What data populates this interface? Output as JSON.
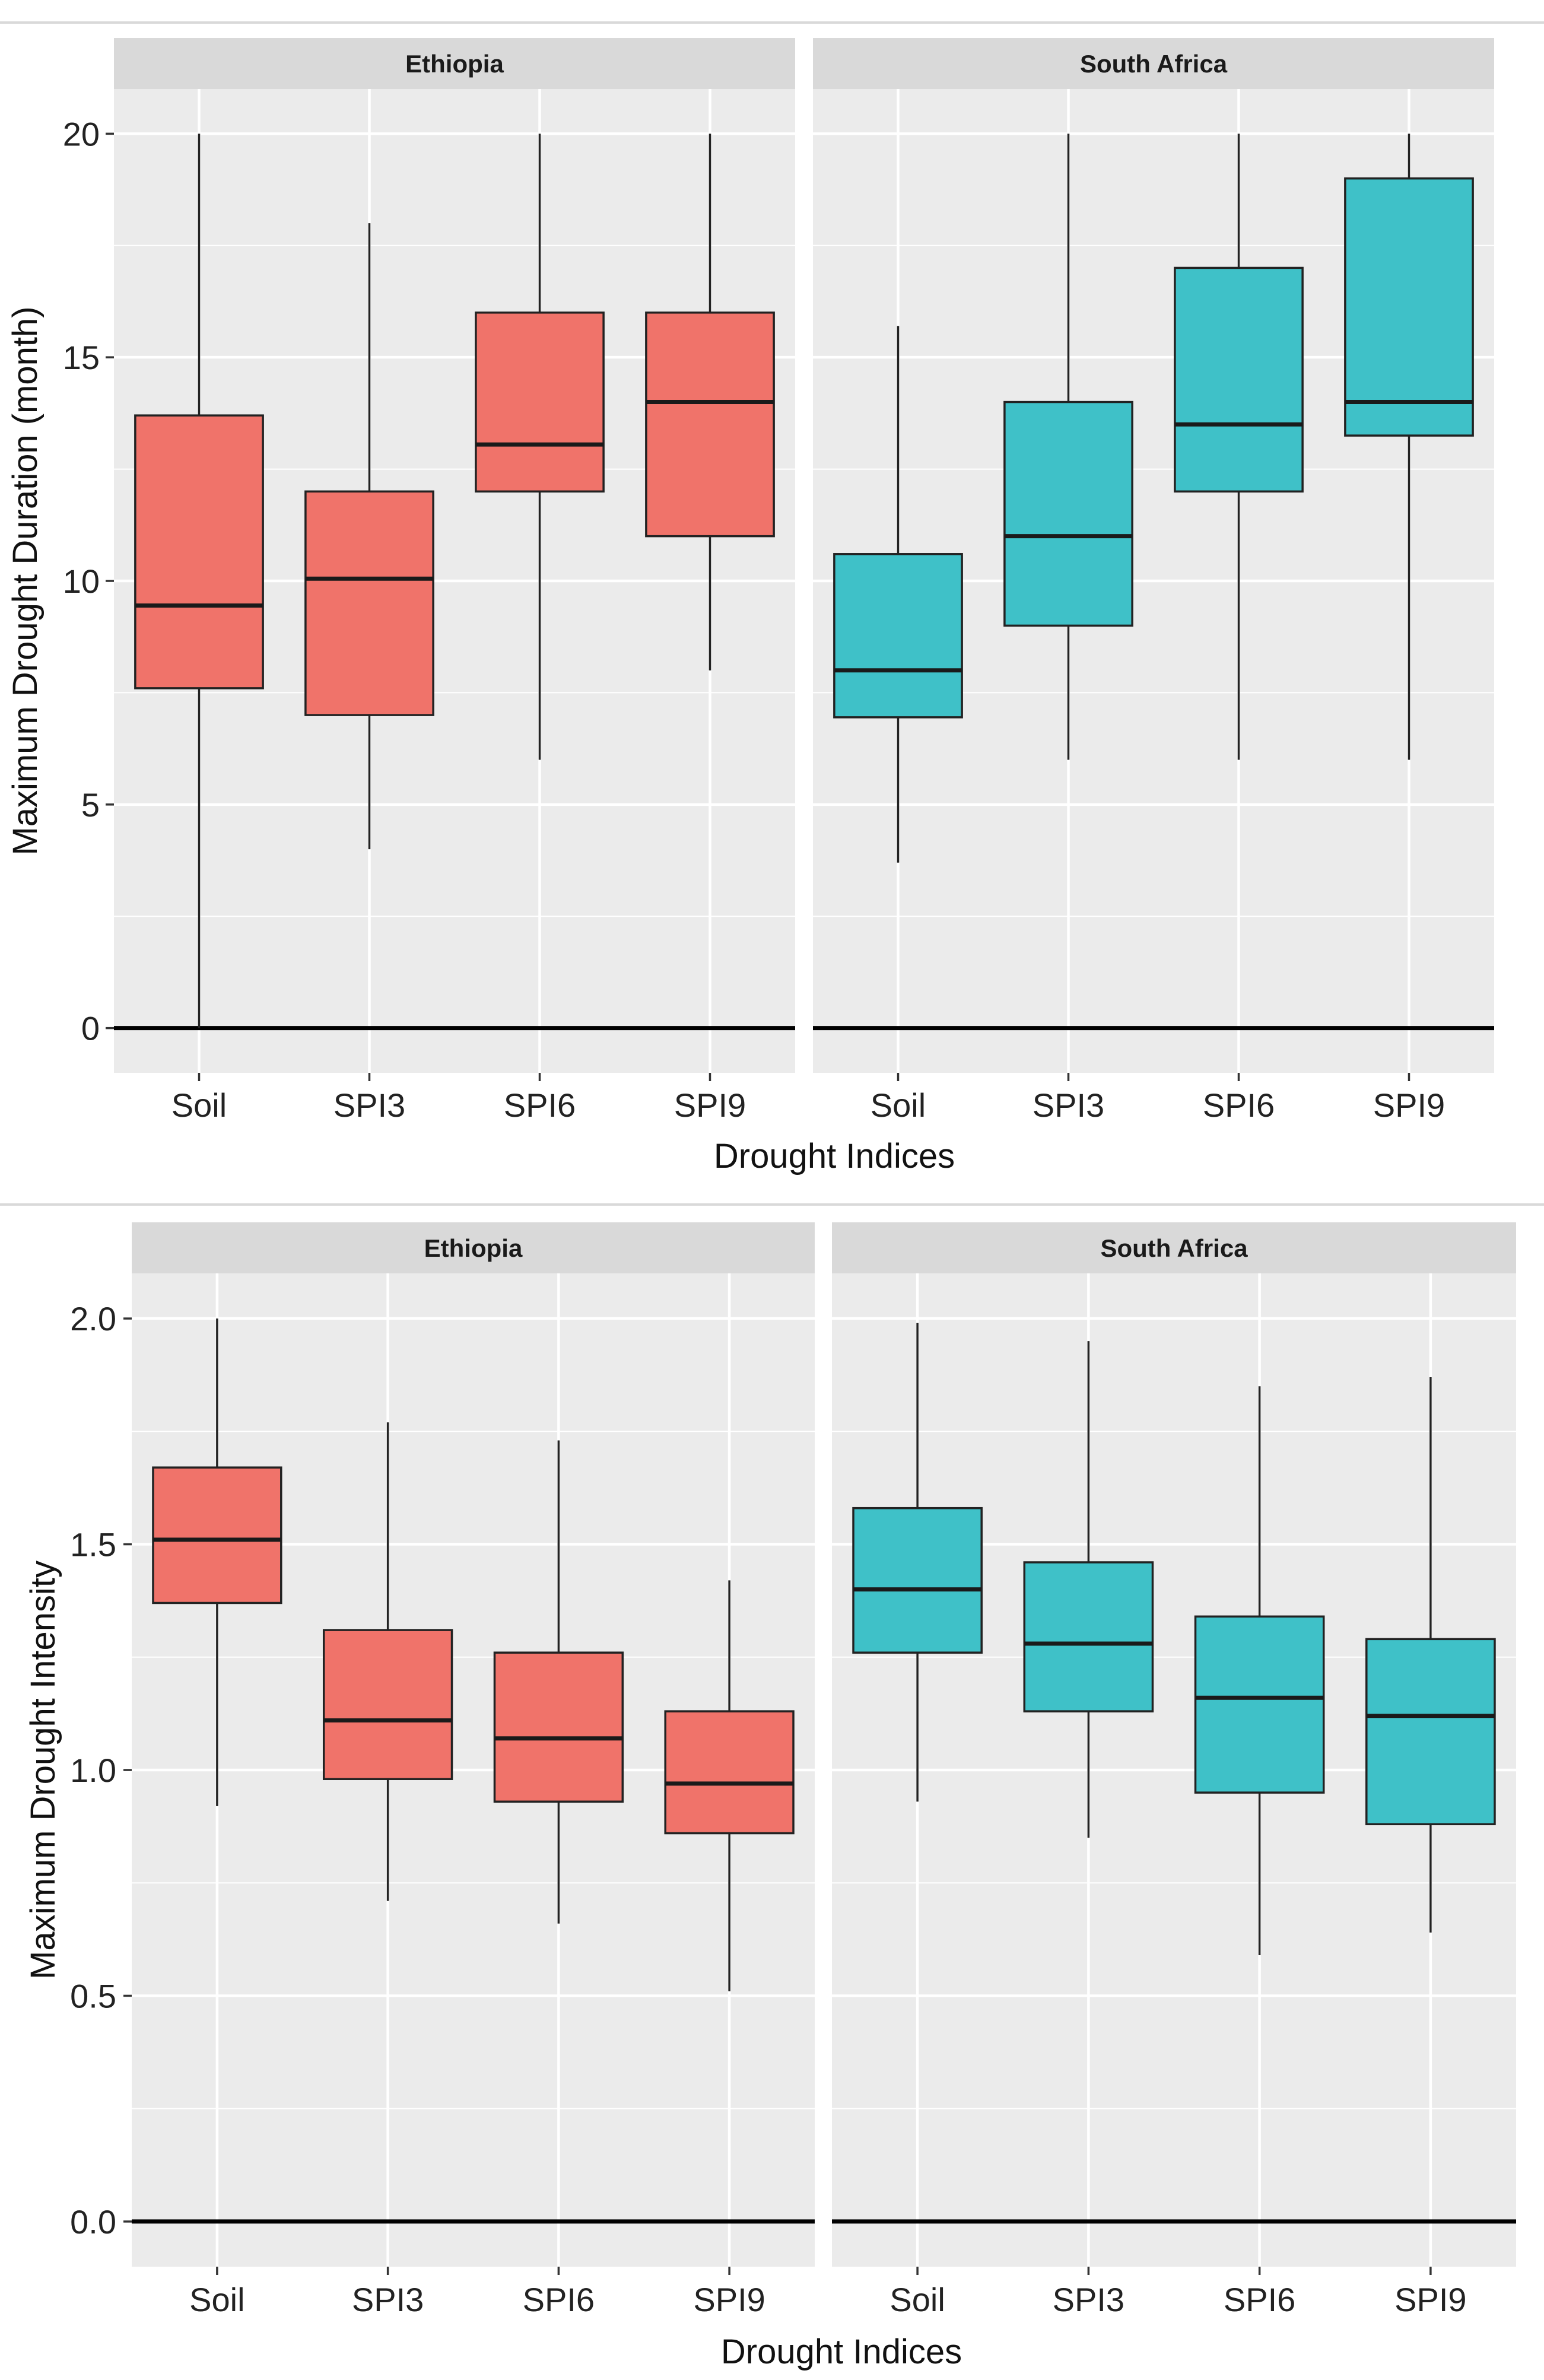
{
  "figure": {
    "colors": {
      "Ethiopia": "#F0736A",
      "South Africa": "#3FC1C8",
      "panel_background": "#EBEBEB",
      "strip_background": "#D9D9D9",
      "grid_line": "#FFFFFF",
      "outline": "#222222"
    }
  },
  "chart_data": [
    {
      "type": "boxplot",
      "title": "",
      "facets": [
        "Ethiopia",
        "South Africa"
      ],
      "categories": [
        "Soil",
        "SPI3",
        "SPI6",
        "SPI9"
      ],
      "xlabel": "Drought Indices",
      "ylabel": "Maximum Drought Duration (month)",
      "ylim": [
        -1.0,
        21.0
      ],
      "yticks": [
        0,
        5,
        10,
        15,
        20
      ],
      "ytick_labels": [
        "0",
        "5",
        "10",
        "15",
        "20"
      ],
      "hline": 0,
      "series": [
        {
          "name": "Ethiopia",
          "boxes": [
            {
              "category": "Soil",
              "min": 0,
              "q1": 7.6,
              "median": 9.45,
              "q3": 13.7,
              "max": 20
            },
            {
              "category": "SPI3",
              "min": 4,
              "q1": 7,
              "median": 10.05,
              "q3": 12,
              "max": 18
            },
            {
              "category": "SPI6",
              "min": 6,
              "q1": 12,
              "median": 13.05,
              "q3": 16,
              "max": 20
            },
            {
              "category": "SPI9",
              "min": 8,
              "q1": 11,
              "median": 14,
              "q3": 16,
              "max": 20
            }
          ]
        },
        {
          "name": "South Africa",
          "boxes": [
            {
              "category": "Soil",
              "min": 3.7,
              "q1": 6.95,
              "median": 8,
              "q3": 10.6,
              "max": 15.7
            },
            {
              "category": "SPI3",
              "min": 6,
              "q1": 9,
              "median": 11,
              "q3": 14,
              "max": 20
            },
            {
              "category": "SPI6",
              "min": 6,
              "q1": 12,
              "median": 13.5,
              "q3": 17,
              "max": 20
            },
            {
              "category": "SPI9",
              "min": 6,
              "q1": 13.25,
              "median": 14,
              "q3": 19,
              "max": 20
            }
          ]
        }
      ]
    },
    {
      "type": "boxplot",
      "title": "",
      "facets": [
        "Ethiopia",
        "South Africa"
      ],
      "categories": [
        "Soil",
        "SPI3",
        "SPI6",
        "SPI9"
      ],
      "xlabel": "Drought Indices",
      "ylabel": "Maximum Drought Intensity",
      "ylim": [
        -0.1,
        2.1
      ],
      "yticks": [
        0.0,
        0.5,
        1.0,
        1.5,
        2.0
      ],
      "ytick_labels": [
        "0.0",
        "0.5",
        "1.0",
        "1.5",
        "2.0"
      ],
      "hline": 0,
      "series": [
        {
          "name": "Ethiopia",
          "boxes": [
            {
              "category": "Soil",
              "min": 0.92,
              "q1": 1.37,
              "median": 1.51,
              "q3": 1.67,
              "max": 2.0
            },
            {
              "category": "SPI3",
              "min": 0.71,
              "q1": 0.98,
              "median": 1.11,
              "q3": 1.31,
              "max": 1.77
            },
            {
              "category": "SPI6",
              "min": 0.66,
              "q1": 0.93,
              "median": 1.07,
              "q3": 1.26,
              "max": 1.73
            },
            {
              "category": "SPI9",
              "min": 0.51,
              "q1": 0.86,
              "median": 0.97,
              "q3": 1.13,
              "max": 1.42
            }
          ]
        },
        {
          "name": "South Africa",
          "boxes": [
            {
              "category": "Soil",
              "min": 0.93,
              "q1": 1.26,
              "median": 1.4,
              "q3": 1.58,
              "max": 1.99
            },
            {
              "category": "SPI3",
              "min": 0.85,
              "q1": 1.13,
              "median": 1.28,
              "q3": 1.46,
              "max": 1.95
            },
            {
              "category": "SPI6",
              "min": 0.59,
              "q1": 0.95,
              "median": 1.16,
              "q3": 1.34,
              "max": 1.85
            },
            {
              "category": "SPI9",
              "min": 0.64,
              "q1": 0.88,
              "median": 1.12,
              "q3": 1.29,
              "max": 1.87
            }
          ]
        }
      ]
    }
  ]
}
